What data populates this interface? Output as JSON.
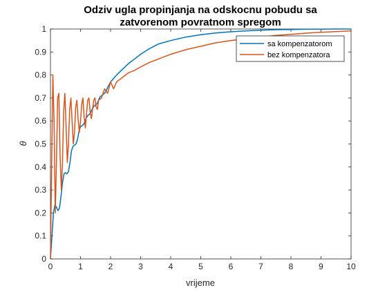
{
  "chart_data": {
    "type": "line",
    "title_line1": "Odziv ugla propinjanja na odskocnu pobudu sa",
    "title_line2": "zatvorenom povratnom spregom",
    "xlabel": "vrijeme",
    "ylabel": "θ",
    "xlim": [
      0,
      10
    ],
    "ylim": [
      0,
      1
    ],
    "x_ticks": [
      "0",
      "1",
      "2",
      "3",
      "4",
      "5",
      "6",
      "7",
      "8",
      "9",
      "10"
    ],
    "y_ticks": [
      "0",
      "0.1",
      "0.2",
      "0.3",
      "0.4",
      "0.5",
      "0.6",
      "0.7",
      "0.8",
      "0.9",
      "1"
    ],
    "grid": false,
    "legend_position": "top-right",
    "series": [
      {
        "name": "sa kompenzatorom",
        "color": "#0072BD",
        "x": [
          0,
          0.05,
          0.1,
          0.15,
          0.2,
          0.25,
          0.3,
          0.35,
          0.4,
          0.45,
          0.5,
          0.55,
          0.6,
          0.65,
          0.7,
          0.75,
          0.8,
          0.85,
          0.9,
          0.95,
          1.0,
          1.05,
          1.1,
          1.15,
          1.2,
          1.25,
          1.3,
          1.35,
          1.4,
          1.45,
          1.5,
          1.55,
          1.6,
          1.65,
          1.7,
          1.75,
          1.8,
          1.85,
          1.9,
          2.0,
          2.2,
          2.4,
          2.6,
          2.8,
          3.0,
          3.3,
          3.6,
          4.0,
          4.5,
          5.0,
          5.5,
          6.0,
          6.5,
          7.0,
          7.5,
          8.0,
          8.5,
          9.0,
          9.5,
          10.0
        ],
        "values": [
          0,
          0.1,
          0.2,
          0.235,
          0.225,
          0.21,
          0.22,
          0.27,
          0.33,
          0.37,
          0.375,
          0.37,
          0.38,
          0.42,
          0.47,
          0.49,
          0.495,
          0.5,
          0.52,
          0.555,
          0.575,
          0.58,
          0.585,
          0.6,
          0.615,
          0.625,
          0.63,
          0.64,
          0.655,
          0.665,
          0.67,
          0.675,
          0.69,
          0.705,
          0.71,
          0.715,
          0.72,
          0.73,
          0.745,
          0.77,
          0.8,
          0.825,
          0.85,
          0.87,
          0.89,
          0.915,
          0.935,
          0.95,
          0.965,
          0.975,
          0.983,
          0.988,
          0.992,
          0.995,
          0.997,
          0.998,
          0.999,
          0.9995,
          1.0,
          1.0
        ]
      },
      {
        "name": "bez kompenzatora",
        "color": "#D95319",
        "x": [
          0,
          0.04,
          0.08,
          0.12,
          0.16,
          0.2,
          0.24,
          0.28,
          0.32,
          0.36,
          0.4,
          0.44,
          0.48,
          0.52,
          0.56,
          0.6,
          0.64,
          0.68,
          0.72,
          0.76,
          0.8,
          0.84,
          0.88,
          0.92,
          0.96,
          1.0,
          1.04,
          1.08,
          1.12,
          1.16,
          1.2,
          1.24,
          1.28,
          1.32,
          1.36,
          1.4,
          1.44,
          1.48,
          1.52,
          1.56,
          1.6,
          1.7,
          1.8,
          1.9,
          2.0,
          2.1,
          2.2,
          2.3,
          2.4,
          2.5,
          2.6,
          2.8,
          3.0,
          3.3,
          3.6,
          4.0,
          4.5,
          5.0,
          5.5,
          6.0,
          6.5,
          7.0,
          7.5,
          8.0,
          8.5,
          9.0,
          9.5,
          10.0
        ],
        "values": [
          0,
          0.4,
          0.8,
          0.6,
          0.2,
          0.42,
          0.7,
          0.72,
          0.45,
          0.3,
          0.42,
          0.64,
          0.72,
          0.58,
          0.42,
          0.5,
          0.65,
          0.7,
          0.6,
          0.5,
          0.55,
          0.66,
          0.69,
          0.61,
          0.55,
          0.6,
          0.67,
          0.7,
          0.62,
          0.57,
          0.63,
          0.69,
          0.7,
          0.64,
          0.61,
          0.65,
          0.69,
          0.7,
          0.66,
          0.65,
          0.69,
          0.7,
          0.74,
          0.72,
          0.77,
          0.74,
          0.77,
          0.78,
          0.79,
          0.8,
          0.81,
          0.82,
          0.835,
          0.855,
          0.87,
          0.89,
          0.91,
          0.925,
          0.94,
          0.95,
          0.958,
          0.965,
          0.972,
          0.977,
          0.982,
          0.986,
          0.989,
          0.992
        ]
      }
    ]
  }
}
